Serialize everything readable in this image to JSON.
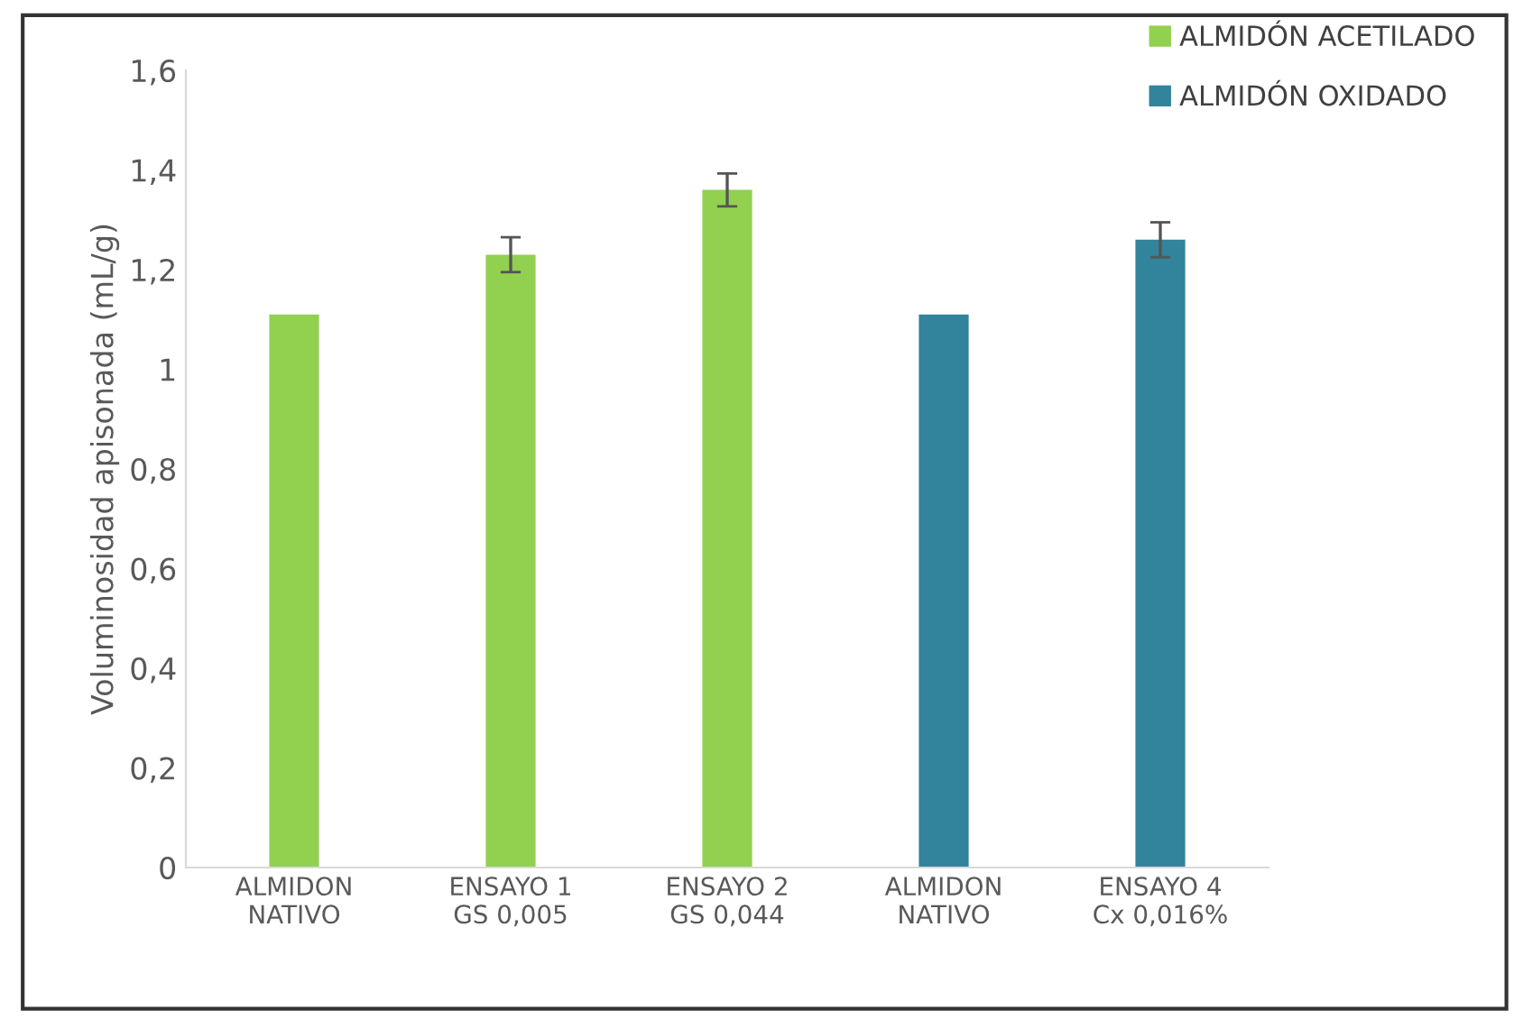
{
  "chart_data": {
    "type": "bar",
    "ylabel": "Voluminosidad apisonada (mL/g)",
    "categories": [
      "ALMIDON\nNATIVO",
      "ENSAYO 1\nGS 0,005",
      "ENSAYO 2\nGS 0,044",
      "ALMIDON\nNATIVO",
      "ENSAYO 4\nCx 0,016%"
    ],
    "series": [
      {
        "name": "ALMIDÓN ACETILADO",
        "color": "#92d050",
        "values": [
          1.11,
          1.23,
          1.36,
          null,
          null
        ],
        "errors": [
          null,
          0.035,
          0.033,
          null,
          null
        ]
      },
      {
        "name": "ALMIDÓN OXIDADO",
        "color": "#31849b",
        "values": [
          null,
          null,
          null,
          1.11,
          1.26
        ],
        "errors": [
          null,
          null,
          null,
          null,
          0.035
        ]
      }
    ],
    "ylim": [
      0,
      1.6
    ],
    "yticks": [
      {
        "value": 0,
        "label": "0"
      },
      {
        "value": 0.2,
        "label": "0,2"
      },
      {
        "value": 0.4,
        "label": "0,4"
      },
      {
        "value": 0.6,
        "label": "0,6"
      },
      {
        "value": 0.8,
        "label": "0,8"
      },
      {
        "value": 1,
        "label": "1"
      },
      {
        "value": 1.2,
        "label": "1,2"
      },
      {
        "value": 1.4,
        "label": "1,4"
      },
      {
        "value": 1.6,
        "label": "1,6"
      }
    ],
    "grid": false,
    "legend": "top right"
  }
}
